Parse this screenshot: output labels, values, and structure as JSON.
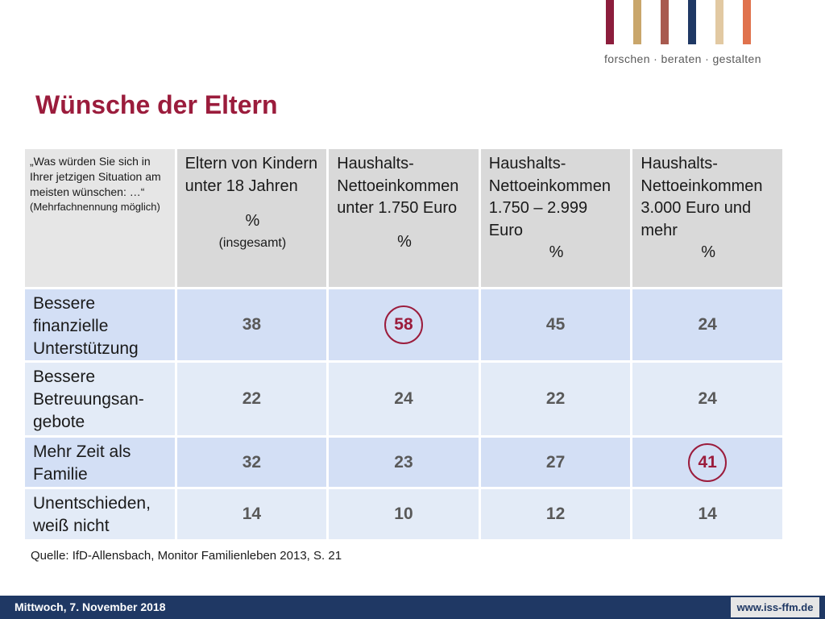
{
  "logo": {
    "tagline": "forschen · beraten · gestalten",
    "bar_colors": [
      "#8c1d3c",
      "#c9a66b",
      "#a85a4f",
      "#1f3864",
      "#e2c9a2",
      "#e0724d"
    ]
  },
  "title": "Wünsche der Eltern",
  "table": {
    "question": "„Was würden Sie sich in Ihrer jetzigen Situation am meisten wünschen: …“",
    "question_note": "(Mehrfachnennung möglich)",
    "columns": [
      {
        "label": "Eltern von Kindern unter 18 Jahren",
        "unit": "%",
        "sub": "(insgesamt)"
      },
      {
        "label": "Haushalts-Nettoeinkommen unter 1.750 Euro",
        "unit": "%",
        "sub": ""
      },
      {
        "label": "Haushalts-Nettoeinkommen 1.750 – 2.999 Euro",
        "unit": "%",
        "sub": ""
      },
      {
        "label": "Haushalts-Nettoeinkommen 3.000 Euro und mehr",
        "unit": "%",
        "sub": ""
      }
    ],
    "rows": [
      {
        "label": "Bessere finanzielle Unterstützung",
        "values": [
          "38",
          "58",
          "45",
          "24"
        ],
        "highlight_index": 1
      },
      {
        "label": "Bessere Betreuungsan-gebote",
        "values": [
          "22",
          "24",
          "22",
          "24"
        ]
      },
      {
        "label": "Mehr Zeit als Familie",
        "values": [
          "32",
          "23",
          "27",
          "41"
        ],
        "highlight_index": 3
      },
      {
        "label": "Unentschieden, weiß nicht",
        "values": [
          "14",
          "10",
          "12",
          "14"
        ]
      }
    ],
    "highlight_color": "#9b1c3c"
  },
  "source": "Quelle: IfD-Allensbach, Monitor Familienleben 2013, S. 21",
  "footer": {
    "date": "Mittwoch, 7. November 2018",
    "url": "www.iss-ffm.de"
  }
}
